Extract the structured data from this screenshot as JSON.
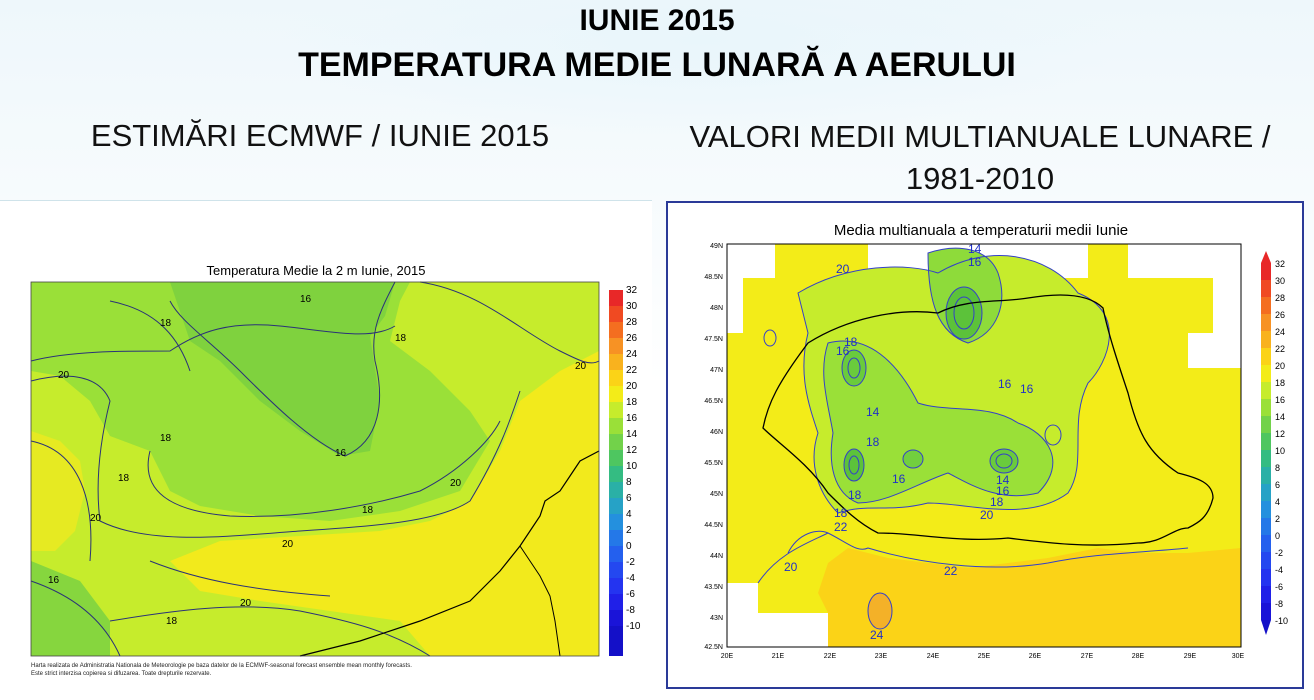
{
  "header": {
    "title_line1": "IUNIE 2015",
    "title_line2": "TEMPERATURA MEDIE LUNARĂ A AERULUI",
    "left_subtitle": "ESTIMĂRI ECMWF / IUNIE 2015",
    "right_subtitle_line1": "VALORI MEDII MULTIANUALE LUNARE /",
    "right_subtitle_line2": "1981-2010"
  },
  "left_map": {
    "title": "Temperatura Medie la 2 m Iunie, 2015",
    "colorbar_ticks": [
      "32",
      "30",
      "28",
      "26",
      "24",
      "22",
      "20",
      "18",
      "16",
      "14",
      "12",
      "10",
      "8",
      "6",
      "4",
      "2",
      "0",
      "-2",
      "-4",
      "-6",
      "-8",
      "-10"
    ],
    "contour_labels": [
      "16",
      "18",
      "16",
      "18",
      "20",
      "20",
      "18",
      "20",
      "20",
      "18",
      "16",
      "20",
      "20",
      "18",
      "18"
    ],
    "footer_line1": "Harta realizata de Administratia Nationala de Meteorologie pe baza datelor de la ECMWF-seasonal forecast ensemble mean monthly forecasts.",
    "footer_line2": "Este strict interzisa copierea si difuzarea. Toate drepturile rezervate."
  },
  "right_map": {
    "title": "Media multianuala a temperaturii medii Iunie",
    "lat_labels": [
      "49N",
      "48.5N",
      "48N",
      "47.5N",
      "47N",
      "46.5N",
      "46N",
      "45.5N",
      "45N",
      "44.5N",
      "44N",
      "43.5N",
      "43N",
      "42.5N"
    ],
    "lon_labels": [
      "20E",
      "21E",
      "22E",
      "23E",
      "24E",
      "25E",
      "26E",
      "27E",
      "28E",
      "29E",
      "30E"
    ],
    "colorbar_ticks": [
      "32",
      "30",
      "28",
      "26",
      "24",
      "22",
      "20",
      "18",
      "16",
      "14",
      "12",
      "10",
      "8",
      "6",
      "4",
      "2",
      "0",
      "-2",
      "-4",
      "-6",
      "-8",
      "-10"
    ],
    "contour_labels": [
      "14",
      "16",
      "20",
      "18",
      "16",
      "16",
      "16",
      "14",
      "18",
      "16",
      "14",
      "16",
      "18",
      "18",
      "22",
      "20",
      "20",
      "22",
      "24",
      "18"
    ]
  },
  "colors": {
    "deep_green": "#5cc23a",
    "green": "#80d540",
    "yellow_green": "#c6ec2c",
    "yellow": "#f3ec18",
    "gold": "#fbd317",
    "orange": "#f4b128",
    "contour_line": "#2a3278",
    "border_line": "#000000"
  }
}
